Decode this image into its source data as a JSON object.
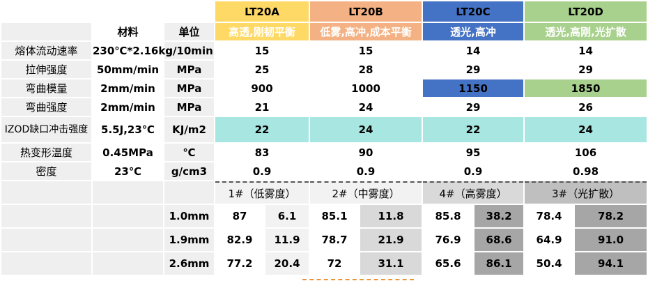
{
  "colors": {
    "A": "#ffd966",
    "B": "#f4b183",
    "C": "#4472c4",
    "D": "#a9d18e",
    "teal": "#a8e6e2",
    "hdr_label_gray": "#ececec"
  },
  "header": {
    "a": "LT20A",
    "b": "LT20B",
    "c": "LT20C",
    "d": "LT20D"
  },
  "subheader": {
    "col_material": "材料",
    "col_unit": "单位",
    "a": "高透,刚韧平衡",
    "b": "低雾,高冲,成本平衡",
    "c": "透光,高冲",
    "d": "透光,高刚,光扩散"
  },
  "rows": [
    {
      "name": "熔体流动速率",
      "cond": "230℃*2.16kg",
      "unit": "g/10min",
      "a": "15",
      "b": "15",
      "c": "14",
      "d": "14"
    },
    {
      "name": "拉伸强度",
      "cond": "50mm/min",
      "unit": "MPa",
      "a": "25",
      "b": "28",
      "c": "29",
      "d": "29"
    },
    {
      "name": "弯曲模量",
      "cond": "2mm/min",
      "unit": "MPa",
      "a": "900",
      "b": "1000",
      "c": "1150",
      "d": "1850"
    },
    {
      "name": "弯曲强度",
      "cond": "2mm/min",
      "unit": "MPa",
      "a": "21",
      "b": "24",
      "c": "29",
      "d": "26"
    },
    {
      "name": "IZOD缺口冲击强度",
      "cond": "5.5J,23℃",
      "unit": "KJ/m2",
      "a": "22",
      "b": "24",
      "c": "22",
      "d": "24"
    },
    {
      "name": "热变形温度",
      "cond": "0.45MPa",
      "unit": "℃",
      "a": "83",
      "b": "90",
      "c": "95",
      "d": "106"
    },
    {
      "name": "密度",
      "cond": "23℃",
      "unit": "g/cm3",
      "a": "0.9",
      "b": "0.9",
      "c": "0.9",
      "d": "0.98"
    }
  ],
  "haze_header": {
    "a": "1#（低雾度）",
    "b": "2#（中雾度）",
    "c": "4#（高雾度）",
    "d": "3#（光扩散）"
  },
  "haze_rows": [
    {
      "thick": "1.0mm",
      "a1": "87",
      "a2": "6.1",
      "b1": "85.1",
      "b2": "11.8",
      "c1": "85.8",
      "c2": "38.2",
      "d1": "78.4",
      "d2": "78.2"
    },
    {
      "thick": "1.9mm",
      "a1": "82.9",
      "a2": "11.9",
      "b1": "78.7",
      "b2": "21.9",
      "c1": "76.9",
      "c2": "68.6",
      "d1": "64.9",
      "d2": "91.0"
    },
    {
      "thick": "2.6mm",
      "a1": "77.2",
      "a2": "20.4",
      "b1": "72",
      "b2": "31.1",
      "c1": "65.6",
      "c2": "86.1",
      "d1": "50.4",
      "d2": "94.1"
    }
  ]
}
